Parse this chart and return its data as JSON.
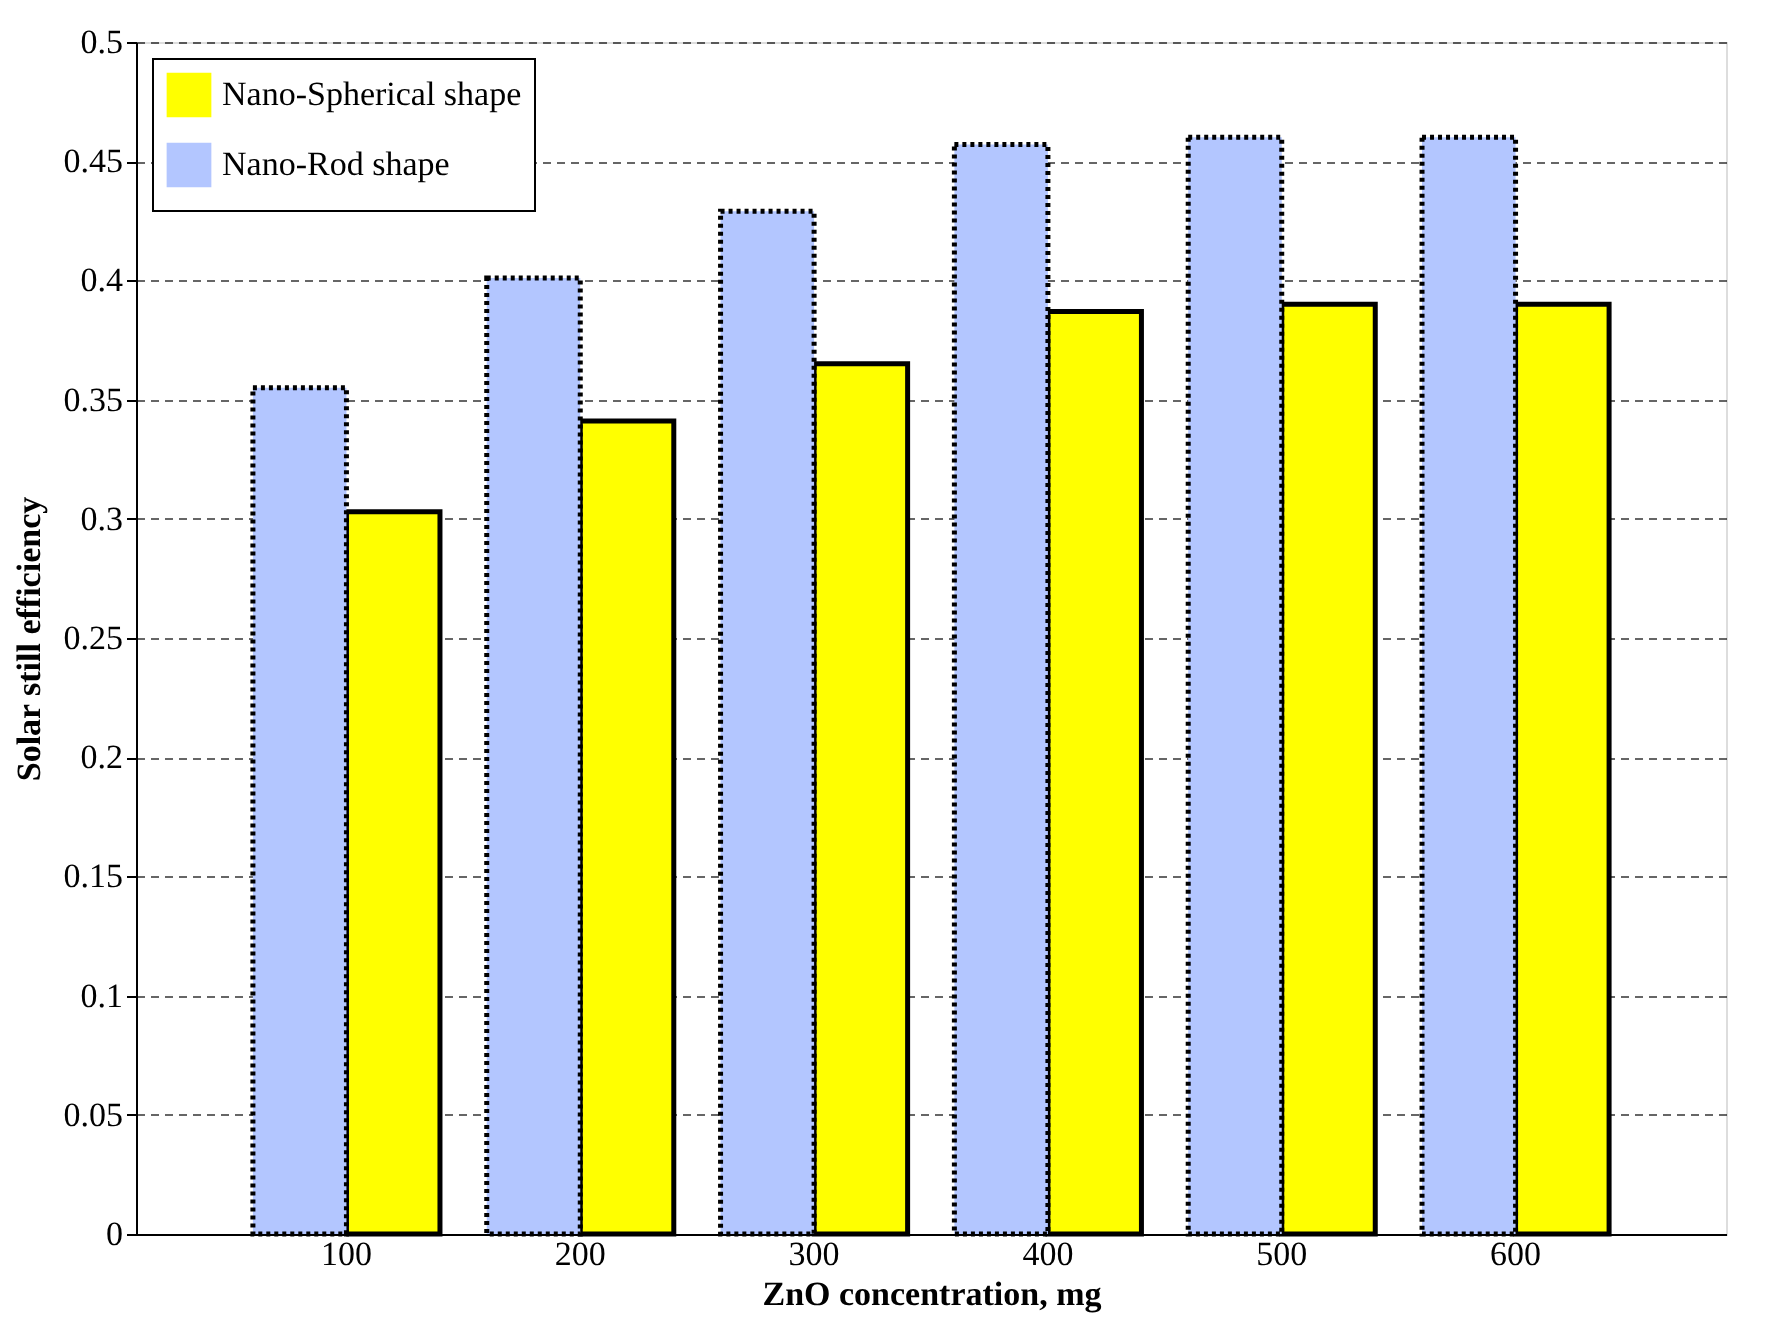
{
  "chart_data": {
    "type": "bar",
    "xlabel": "ZnO concentration, mg",
    "ylabel": "Solar still efficiency",
    "categories": [
      "100",
      "200",
      "300",
      "400",
      "500",
      "600"
    ],
    "series": [
      {
        "name": "Nano-Spherical shape",
        "color": "#ffff00",
        "line_style": "solid",
        "values": [
          0.303,
          0.341,
          0.365,
          0.387,
          0.39,
          0.39
        ]
      },
      {
        "name": "Nano-Rod shape",
        "color": "#b3c6ff",
        "line_style": "dotted",
        "values": [
          0.355,
          0.401,
          0.429,
          0.457,
          0.46,
          0.46
        ]
      }
    ],
    "ylim": [
      0,
      0.5
    ],
    "yticks": [
      0,
      0.05,
      0.1,
      0.15,
      0.2,
      0.25,
      0.3,
      0.35,
      0.4,
      0.45,
      0.5
    ],
    "grid": "y",
    "legend": "top left"
  }
}
